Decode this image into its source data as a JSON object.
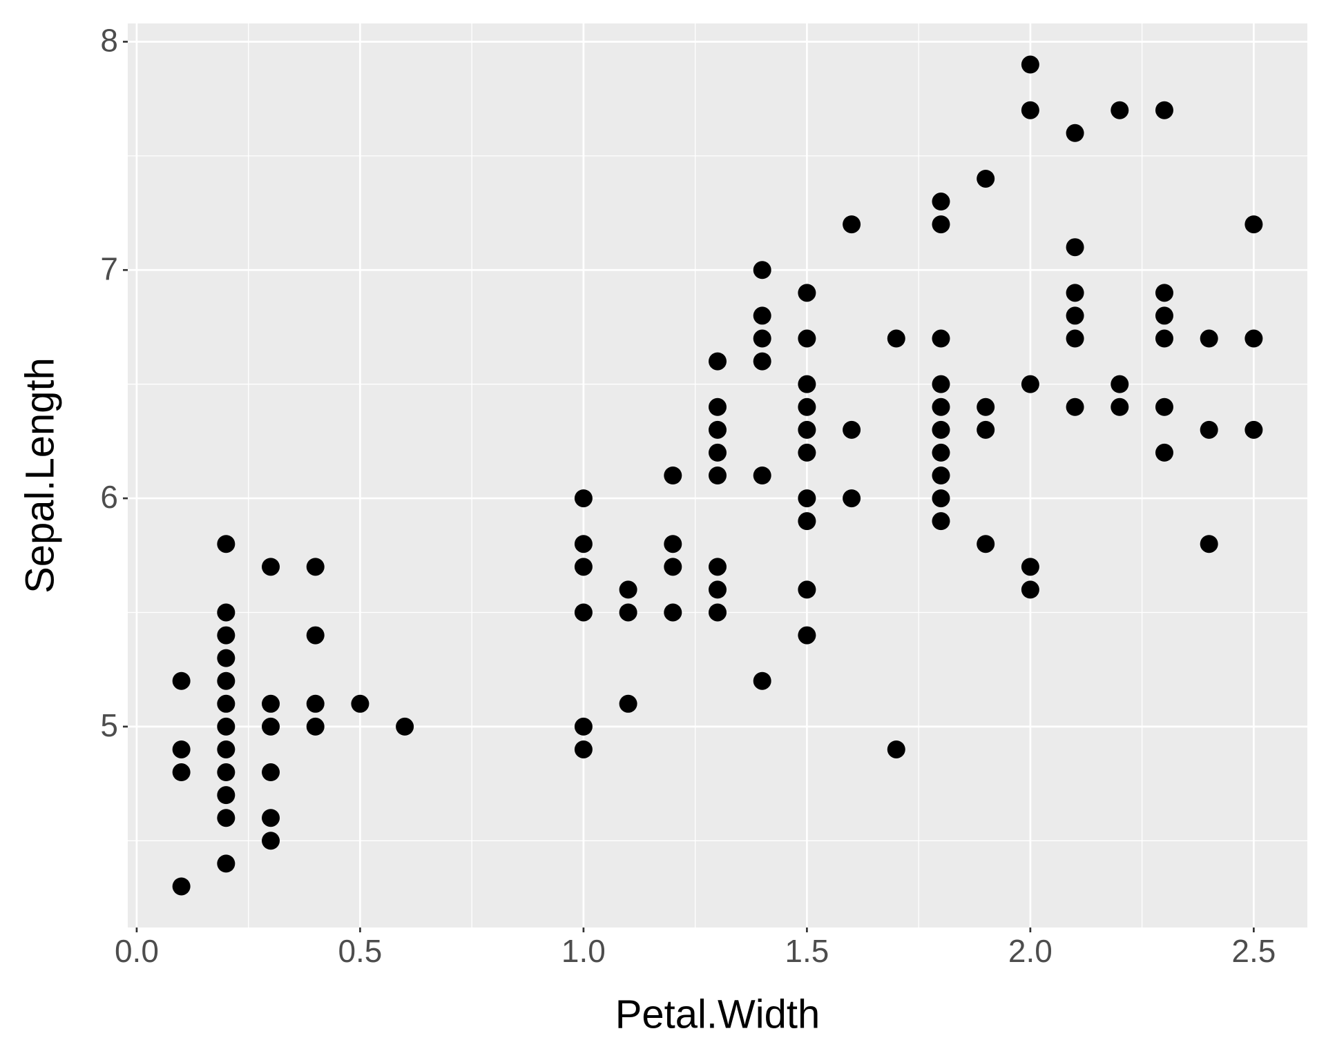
{
  "chart_data": {
    "type": "scatter",
    "x_label": "Petal.Width",
    "y_label": "Sepal.Length",
    "color": "#000000",
    "grid": true,
    "x": [
      0.1,
      0.1,
      0.1,
      0.1,
      0.2,
      0.2,
      0.2,
      0.2,
      0.2,
      0.2,
      0.2,
      0.2,
      0.2,
      0.2,
      0.2,
      0.2,
      0.3,
      0.3,
      0.3,
      0.3,
      0.3,
      0.3,
      0.4,
      0.4,
      0.4,
      0.4,
      0.5,
      0.6,
      1.0,
      1.0,
      1.0,
      1.0,
      1.0,
      1.0,
      1.1,
      1.1,
      1.1,
      1.2,
      1.2,
      1.2,
      1.2,
      1.3,
      1.3,
      1.3,
      1.3,
      1.3,
      1.3,
      1.3,
      1.3,
      1.4,
      1.4,
      1.4,
      1.4,
      1.4,
      1.4,
      1.5,
      1.5,
      1.5,
      1.5,
      1.5,
      1.5,
      1.5,
      1.5,
      1.5,
      1.5,
      1.6,
      1.6,
      1.6,
      1.7,
      1.7,
      1.8,
      1.8,
      1.8,
      1.8,
      1.8,
      1.8,
      1.8,
      1.8,
      1.8,
      1.8,
      1.9,
      1.9,
      1.9,
      1.9,
      2.0,
      2.0,
      2.0,
      2.0,
      2.0,
      2.1,
      2.1,
      2.1,
      2.1,
      2.1,
      2.1,
      2.2,
      2.2,
      2.2,
      2.3,
      2.3,
      2.3,
      2.3,
      2.3,
      2.3,
      2.4,
      2.4,
      2.4,
      2.5,
      2.5,
      2.5
    ],
    "values": [
      5.2,
      4.9,
      4.8,
      4.3,
      5.8,
      5.5,
      5.4,
      5.3,
      5.2,
      5.1,
      5.0,
      4.9,
      4.8,
      4.7,
      4.6,
      4.4,
      5.7,
      5.1,
      5.0,
      4.8,
      4.6,
      4.5,
      5.7,
      5.4,
      5.1,
      5.0,
      5.1,
      5.0,
      6.0,
      5.8,
      5.7,
      5.5,
      5.0,
      4.9,
      5.6,
      5.5,
      5.1,
      6.1,
      5.8,
      5.7,
      5.5,
      6.6,
      6.4,
      6.3,
      6.2,
      6.1,
      5.7,
      5.6,
      5.5,
      7.0,
      6.8,
      6.7,
      6.6,
      6.1,
      5.2,
      6.9,
      6.7,
      6.5,
      6.4,
      6.3,
      6.2,
      6.0,
      5.9,
      5.6,
      5.4,
      7.2,
      6.3,
      6.0,
      6.7,
      4.9,
      7.3,
      7.2,
      6.7,
      6.5,
      6.4,
      6.3,
      6.2,
      6.1,
      6.0,
      5.9,
      7.4,
      6.4,
      6.3,
      5.8,
      7.9,
      7.7,
      6.5,
      5.7,
      5.6,
      7.6,
      7.1,
      6.9,
      6.8,
      6.7,
      6.4,
      7.7,
      6.5,
      6.4,
      7.7,
      6.9,
      6.8,
      6.7,
      6.4,
      6.2,
      6.7,
      6.3,
      5.8,
      7.2,
      6.7,
      6.3
    ],
    "xlim": [
      -0.02,
      2.62
    ],
    "xticks": [
      {
        "value": 0,
        "label": "0.0"
      },
      0.5,
      {
        "value": 1,
        "label": "1.0"
      },
      1.5,
      {
        "value": 2,
        "label": "2.0"
      },
      2.5
    ],
    "ylim": [
      4.12,
      8.08
    ],
    "yticks": [
      5,
      6,
      7,
      8
    ]
  }
}
